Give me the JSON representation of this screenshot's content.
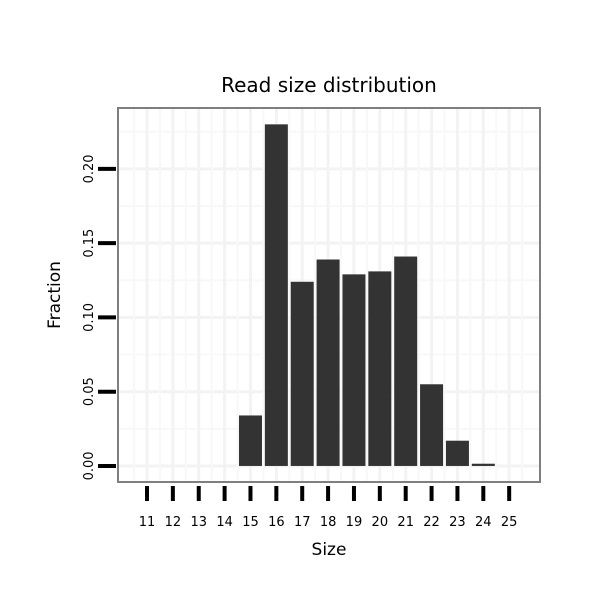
{
  "chart_data": {
    "type": "bar",
    "title": "Read size distribution",
    "xlabel": "Size",
    "ylabel": "Fraction",
    "categories": [
      "11",
      "12",
      "13",
      "14",
      "15",
      "16",
      "17",
      "18",
      "19",
      "20",
      "21",
      "22",
      "23",
      "24",
      "25"
    ],
    "values": [
      0,
      0,
      0,
      0,
      0.034,
      0.23,
      0.124,
      0.139,
      0.129,
      0.131,
      0.141,
      0.055,
      0.017,
      0.0015,
      0
    ],
    "yticks": [
      0,
      0.05,
      0.1,
      0.15,
      0.2
    ],
    "ytick_labels": [
      "0.00",
      "0.05",
      "0.10",
      "0.15",
      "0.20"
    ],
    "ylim": [
      -0.0108,
      0.241
    ],
    "grid": true,
    "colors": {
      "bar": "#333333",
      "panel_border": "#7f7f7f",
      "grid": "#f3f3f3"
    }
  }
}
